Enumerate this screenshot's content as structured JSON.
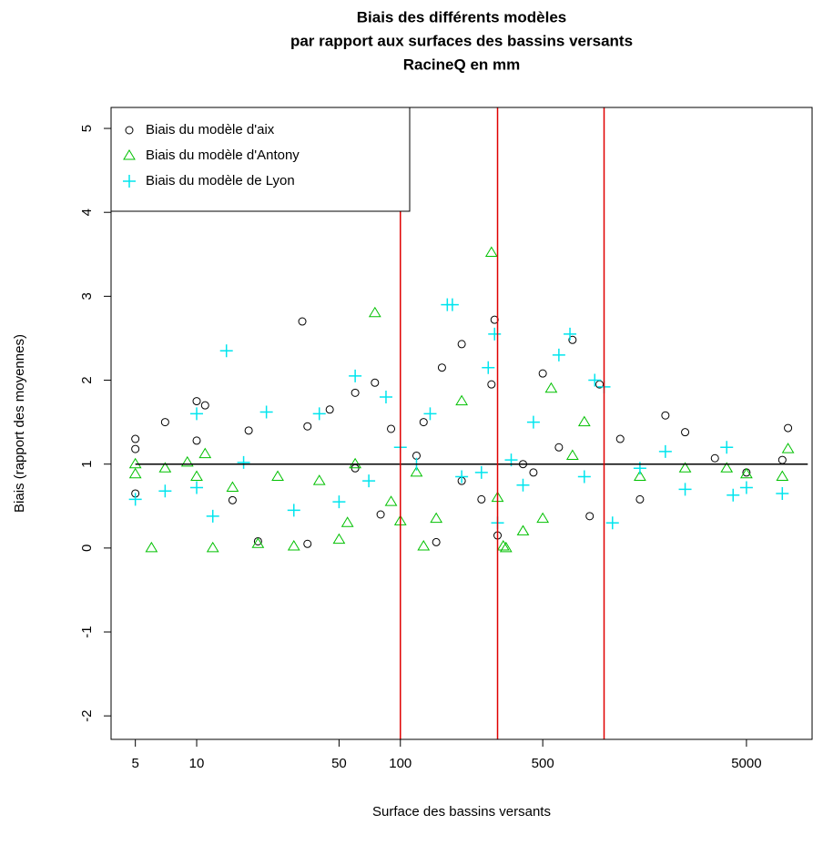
{
  "chart_data": {
    "type": "scatter",
    "title": [
      "Biais des différents modèles",
      "par rapport aux surfaces des bassins versants",
      "RacineQ en mm"
    ],
    "x_label": "Surface des bassins versants",
    "y_label": "Biais (rapport des moyennes)",
    "xlog": true,
    "xlim": [
      3.8,
      10500
    ],
    "ylim": [
      -2.28,
      5.25
    ],
    "xticks": [
      5,
      10,
      50,
      100,
      500,
      5000
    ],
    "yticks": [
      -2,
      -1,
      0,
      1,
      2,
      3,
      4,
      5
    ],
    "vlines": {
      "values": [
        100,
        300,
        1000
      ],
      "color": "#e00000"
    },
    "hline": {
      "value": 1,
      "color": "#000000",
      "xlim": [
        5,
        10000
      ]
    },
    "legend": "top-left",
    "series": [
      {
        "name": "Biais du modèle d'aix",
        "color": "#000000",
        "marker": "circle",
        "x": [
          5,
          5,
          5,
          7,
          10,
          11,
          10,
          15,
          18,
          20,
          33,
          35,
          45,
          60,
          75,
          90,
          130,
          160,
          200,
          290,
          300,
          280,
          400,
          500,
          700,
          850,
          950,
          1500,
          2000,
          2500,
          3500,
          5000,
          7500,
          8000,
          150,
          250,
          60,
          120,
          450,
          200,
          35,
          80,
          600,
          1200
        ],
        "values": [
          1.3,
          0.65,
          1.18,
          1.5,
          1.75,
          1.7,
          1.28,
          0.57,
          1.4,
          0.08,
          2.7,
          1.45,
          1.65,
          1.85,
          1.97,
          1.42,
          1.5,
          2.15,
          2.43,
          2.72,
          0.15,
          1.95,
          1.0,
          2.08,
          2.48,
          0.38,
          1.95,
          0.58,
          1.58,
          1.38,
          1.07,
          0.9,
          1.05,
          1.43,
          0.07,
          0.58,
          0.95,
          1.1,
          0.9,
          0.8,
          0.05,
          0.4,
          1.2,
          1.3
        ]
      },
      {
        "name": "Biais du modèle d'Antony",
        "color": "#00c000",
        "marker": "triangle",
        "x": [
          5,
          5,
          6,
          7,
          9,
          10,
          11,
          12,
          15,
          20,
          25,
          30,
          50,
          55,
          75,
          100,
          130,
          150,
          280,
          320,
          330,
          400,
          500,
          550,
          800,
          1500,
          2500,
          4000,
          5000,
          7500,
          8000,
          200,
          60,
          300,
          120,
          700,
          40,
          90
        ],
        "values": [
          1.0,
          0.88,
          0.0,
          0.95,
          1.02,
          0.85,
          1.12,
          0.0,
          0.72,
          0.05,
          0.85,
          0.02,
          0.1,
          0.3,
          2.8,
          0.32,
          0.02,
          0.35,
          3.52,
          0.02,
          0.0,
          0.2,
          0.35,
          1.9,
          1.5,
          0.85,
          0.95,
          0.95,
          0.88,
          0.85,
          1.18,
          1.75,
          1.0,
          0.6,
          0.9,
          1.1,
          0.8,
          0.55
        ]
      },
      {
        "name": "Biais du modèle de Lyon",
        "color": "#00e5ee",
        "marker": "plus",
        "x": [
          5,
          7,
          10,
          10,
          12,
          14,
          17,
          22,
          30,
          40,
          60,
          85,
          100,
          140,
          170,
          180,
          270,
          290,
          300,
          450,
          600,
          680,
          900,
          1000,
          1100,
          1500,
          2000,
          2500,
          4000,
          4300,
          5000,
          7500,
          250,
          350,
          200,
          120,
          70,
          50,
          800,
          400
        ],
        "values": [
          0.58,
          0.68,
          1.6,
          0.72,
          0.38,
          2.35,
          1.02,
          1.62,
          0.45,
          1.6,
          2.05,
          1.8,
          1.2,
          1.6,
          2.9,
          2.9,
          2.15,
          2.55,
          0.3,
          1.5,
          2.3,
          2.55,
          2.0,
          1.92,
          0.3,
          0.95,
          1.15,
          0.7,
          1.2,
          0.63,
          0.72,
          0.65,
          0.9,
          1.05,
          0.85,
          1.0,
          0.8,
          0.55,
          0.85,
          0.75
        ]
      }
    ]
  }
}
